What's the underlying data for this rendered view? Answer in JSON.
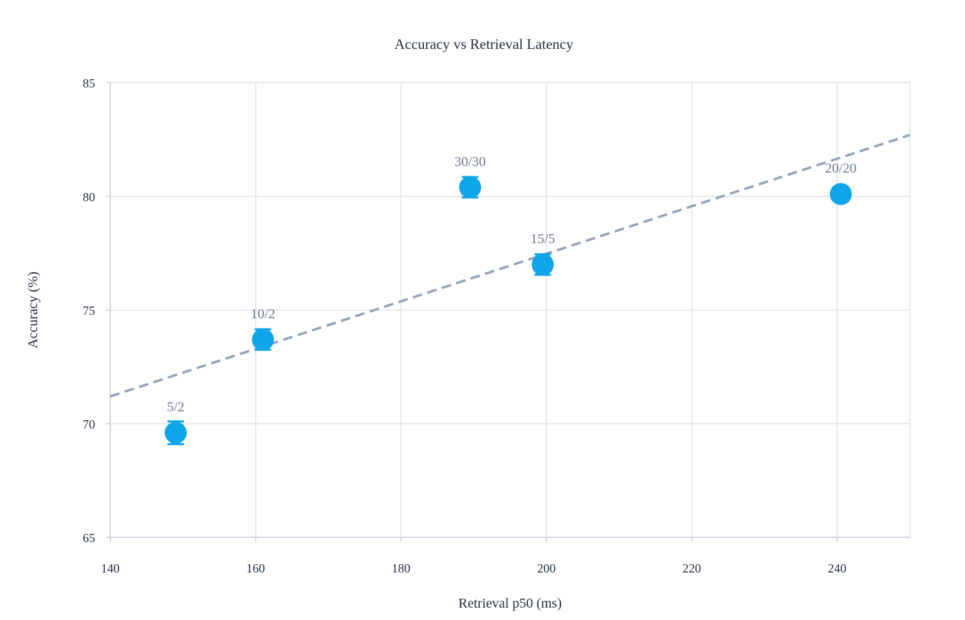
{
  "chart_data": {
    "type": "scatter",
    "title": "Accuracy vs Retrieval Latency",
    "xlabel": "Retrieval p50 (ms)",
    "ylabel": "Accuracy (%)",
    "xlim": [
      140,
      250
    ],
    "ylim": [
      65,
      85
    ],
    "x_ticks": [
      140,
      160,
      180,
      200,
      220,
      240
    ],
    "y_ticks": [
      65,
      70,
      75,
      80,
      85
    ],
    "grid": true,
    "colors": {
      "point": "#0ea5e9",
      "trend": "#94a3b8",
      "grid": "#dde3ec"
    },
    "points": [
      {
        "label": "5/2",
        "x": 149,
        "y": 69.6,
        "err": 0.5
      },
      {
        "label": "10/2",
        "x": 161,
        "y": 73.7,
        "err": 0.45
      },
      {
        "label": "30/30",
        "x": 189.5,
        "y": 80.4,
        "err": 0.45
      },
      {
        "label": "15/5",
        "x": 199.5,
        "y": 77.0,
        "err": 0.45
      },
      {
        "label": "20/20",
        "x": 240.5,
        "y": 80.1,
        "err": 0.3
      }
    ],
    "trendline": {
      "style": "dashed",
      "x": [
        140,
        250
      ],
      "y": [
        71.2,
        82.7
      ]
    }
  }
}
